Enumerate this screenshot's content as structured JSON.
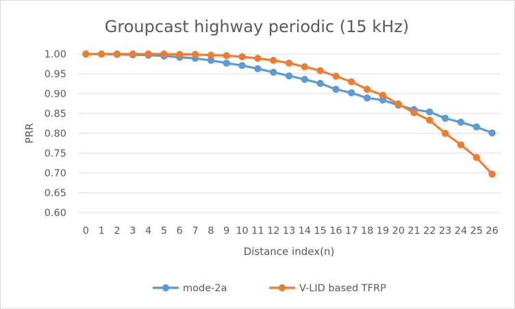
{
  "chart_data": {
    "type": "line",
    "title": "Groupcast highway periodic (15 kHz)",
    "xlabel": "Distance index(n)",
    "ylabel": "PRR",
    "ylim": [
      0.6,
      1.0
    ],
    "yticks": [
      "0.60",
      "0.65",
      "0.70",
      "0.75",
      "0.80",
      "0.85",
      "0.90",
      "0.95",
      "1.00"
    ],
    "categories": [
      "0",
      "1",
      "2",
      "3",
      "4",
      "5",
      "6",
      "7",
      "8",
      "9",
      "10",
      "11",
      "12",
      "13",
      "14",
      "15",
      "16",
      "17",
      "18",
      "19",
      "20",
      "21",
      "22",
      "23",
      "24",
      "25",
      "26"
    ],
    "grid": "horizontal",
    "legend_position": "bottom",
    "series": [
      {
        "name": "mode-2a",
        "color": "#5b9bd5",
        "values": [
          1.0,
          1.0,
          0.999,
          0.998,
          0.997,
          0.995,
          0.992,
          0.989,
          0.984,
          0.977,
          0.971,
          0.963,
          0.954,
          0.945,
          0.936,
          0.926,
          0.911,
          0.902,
          0.889,
          0.884,
          0.871,
          0.86,
          0.854,
          0.838,
          0.828,
          0.816,
          0.801
        ]
      },
      {
        "name": "V-LID based TFRP",
        "color": "#ed7d31",
        "values": [
          1.0,
          1.0,
          1.0,
          1.0,
          1.0,
          1.0,
          0.999,
          0.999,
          0.997,
          0.996,
          0.993,
          0.989,
          0.984,
          0.977,
          0.968,
          0.958,
          0.944,
          0.93,
          0.911,
          0.896,
          0.874,
          0.852,
          0.833,
          0.8,
          0.771,
          0.739,
          0.697
        ]
      }
    ]
  }
}
